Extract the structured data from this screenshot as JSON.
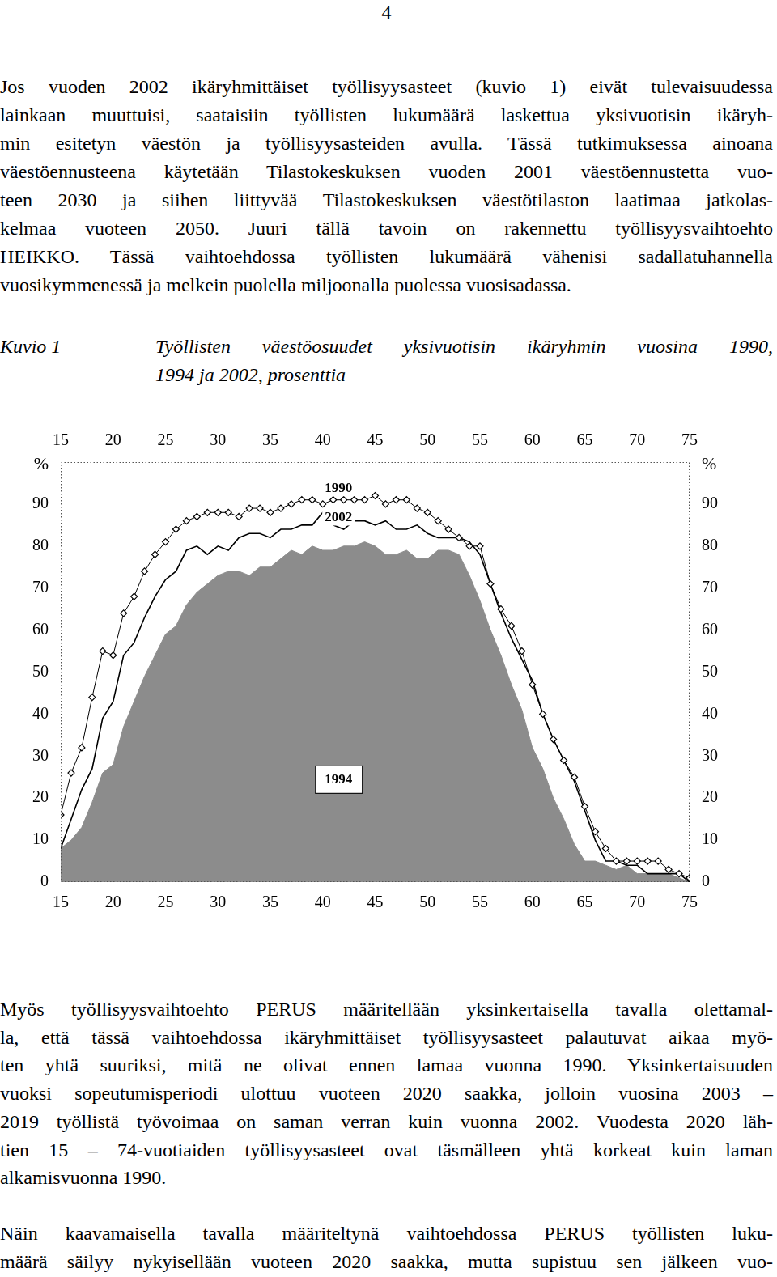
{
  "document": {
    "page_number": "4",
    "paragraphs_before": [
      [
        "Jos vuoden 2002 ikäryhmittäiset työllisyysasteet (kuvio 1) eivät tulevaisuudessa",
        "lainkaan muuttuisi, saataisiin työllisten lukumäärä laskettua yksivuotisin ikäryh-",
        "min esitetyn väestön ja työllisyysasteiden avulla. Tässä tutkimuksessa ainoana",
        "väestöennusteena käytetään Tilastokeskuksen vuoden 2001 väestöennustetta vuo-",
        "teen 2030 ja siihen liittyvää Tilastokeskuksen väestötilaston laatimaa jatkolas-",
        "kelmaa vuoteen 2050. Juuri tällä tavoin on rakennettu työllisyysvaihtoehto",
        "HEIKKO. Tässä vaihtoehdossa työllisten lukumäärä vähenisi sadallatuhannella",
        "vuosikymmenessä ja melkein puolella miljoonalla puolessa vuosisadassa."
      ]
    ],
    "figure": {
      "label": "Kuvio 1",
      "caption": [
        "Työllisten väestöosuudet yksivuotisin ikäryhmin vuosina 1990,",
        "1994 ja 2002, prosenttia"
      ]
    },
    "paragraphs_after": [
      [
        "Myös työllisyysvaihtoehto PERUS määritellään yksinkertaisella tavalla olettamal-",
        "la, että tässä vaihtoehdossa ikäryhmittäiset työllisyysasteet palautuvat aikaa myö-",
        "ten yhtä suuriksi, mitä ne olivat ennen lamaa vuonna 1990. Yksinkertaisuuden",
        "vuoksi sopeutumisperiodi ulottuu vuoteen 2020 saakka, jolloin vuosina 2003 –",
        "2019 työllistä työvoimaa on saman verran kuin vuonna 2002. Vuodesta 2020 läh-",
        "tien 15 – 74-vuotiaiden työllisyysasteet ovat täsmälleen yhtä korkeat kuin laman",
        "alkamisvuonna 1990."
      ],
      [
        "Näin kaavamaisella tavalla määriteltynä vaihtoehdossa PERUS työllisten luku-",
        "määrä säilyy nykyisellään vuoteen 2020 saakka, mutta supistuu sen jälkeen vuo-"
      ]
    ]
  },
  "chart_data": {
    "type": "line",
    "ylabel": "%",
    "x": [
      15,
      16,
      17,
      18,
      19,
      20,
      21,
      22,
      23,
      24,
      25,
      26,
      27,
      28,
      29,
      30,
      31,
      32,
      33,
      34,
      35,
      36,
      37,
      38,
      39,
      40,
      41,
      42,
      43,
      44,
      45,
      46,
      47,
      48,
      49,
      50,
      51,
      52,
      53,
      54,
      55,
      56,
      57,
      58,
      59,
      60,
      61,
      62,
      63,
      64,
      65,
      66,
      67,
      68,
      69,
      70,
      71,
      72,
      73,
      74,
      75
    ],
    "series": [
      {
        "name": "1990",
        "type": "line",
        "color": "#000000",
        "marker": "diamond",
        "line_style": "solid",
        "values": [
          16,
          26,
          32,
          44,
          55,
          54,
          64,
          68,
          74,
          78,
          81,
          84,
          86,
          87,
          88,
          88,
          88,
          87,
          89,
          89,
          88,
          89,
          90,
          91,
          91,
          90,
          91,
          91,
          91,
          91,
          92,
          90,
          91,
          91,
          89,
          88,
          86,
          84,
          82,
          80,
          80,
          71,
          65,
          61,
          55,
          47,
          40,
          34,
          29,
          25,
          18,
          12,
          8,
          5,
          5,
          5,
          5,
          5,
          3,
          2,
          1
        ]
      },
      {
        "name": "2002",
        "type": "line",
        "color": "#000000",
        "marker": "none",
        "line_style": "solid",
        "values": [
          8,
          15,
          22,
          27,
          39,
          43,
          54,
          57,
          63,
          68,
          72,
          74,
          79,
          80,
          78,
          80,
          79,
          82,
          83,
          83,
          82,
          84,
          84,
          85,
          85,
          88,
          85,
          84,
          86,
          86,
          85,
          86,
          84,
          84,
          85,
          83,
          82,
          82,
          82,
          81,
          78,
          71,
          64,
          58,
          53,
          48,
          40,
          34,
          29,
          24,
          17,
          10,
          5,
          5,
          4,
          4,
          2,
          2,
          2,
          2,
          0
        ]
      },
      {
        "name": "1994",
        "type": "area",
        "color": "#8c8c8c",
        "marker": "none",
        "line_style": "solid",
        "values": [
          8,
          10,
          13,
          19,
          26,
          28,
          37,
          43,
          49,
          54,
          59,
          61,
          66,
          69,
          71,
          73,
          74,
          74,
          73,
          75,
          75,
          77,
          79,
          78,
          80,
          79,
          79,
          80,
          80,
          81,
          80,
          78,
          78,
          79,
          77,
          77,
          79,
          79,
          78,
          73,
          67,
          60,
          54,
          47,
          41,
          32,
          27,
          20,
          15,
          9,
          5,
          5,
          4,
          3,
          4,
          2,
          2,
          2,
          2,
          1,
          0
        ]
      }
    ],
    "annotations": [
      {
        "text": "1990",
        "x": 41.5,
        "y": 94
      },
      {
        "text": "2002",
        "x": 41.5,
        "y": 87
      },
      {
        "text": "1994",
        "x": 41.5,
        "y": 24.5
      }
    ],
    "xlim": [
      15,
      75
    ],
    "xticks": [
      15,
      20,
      25,
      30,
      35,
      40,
      45,
      50,
      55,
      60,
      65,
      70,
      75
    ],
    "ylim": [
      0,
      100
    ],
    "yticks": [
      0,
      10,
      20,
      30,
      40,
      50,
      60,
      70,
      80,
      90
    ],
    "grid": false
  }
}
